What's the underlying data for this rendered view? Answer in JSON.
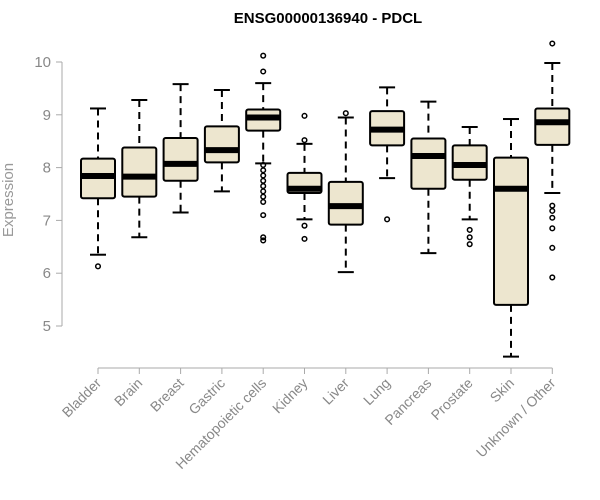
{
  "chart_data": {
    "type": "boxplot",
    "title": "ENSG00000136940 - PDCL",
    "xlabel": "",
    "ylabel": "Expression",
    "ylim": [
      4.3,
      10.5
    ],
    "yticks": [
      5,
      6,
      7,
      8,
      9,
      10
    ],
    "grid": false,
    "legend": "none",
    "box_fill": "#ede6cf",
    "categories": [
      "Bladder",
      "Brain",
      "Breast",
      "Gastric",
      "Hematopoietic cells",
      "Kidney",
      "Liver",
      "Lung",
      "Pancreas",
      "Prostate",
      "Skin",
      "Unknown / Other"
    ],
    "boxes": [
      {
        "category": "Bladder",
        "whisker_low": 6.35,
        "q1": 7.42,
        "median": 7.84,
        "q3": 8.17,
        "whisker_high": 9.12,
        "outliers": [
          6.13
        ]
      },
      {
        "category": "Brain",
        "whisker_low": 6.68,
        "q1": 7.45,
        "median": 7.83,
        "q3": 8.38,
        "whisker_high": 9.28,
        "outliers": []
      },
      {
        "category": "Breast",
        "whisker_low": 7.15,
        "q1": 7.75,
        "median": 8.07,
        "q3": 8.56,
        "whisker_high": 9.58,
        "outliers": []
      },
      {
        "category": "Gastric",
        "whisker_low": 7.55,
        "q1": 8.1,
        "median": 8.33,
        "q3": 8.78,
        "whisker_high": 9.47,
        "outliers": []
      },
      {
        "category": "Hematopoietic cells",
        "whisker_low": 8.08,
        "q1": 8.7,
        "median": 8.95,
        "q3": 9.1,
        "whisker_high": 9.6,
        "outliers": [
          9.82,
          10.12,
          8.05,
          7.95,
          7.85,
          7.75,
          7.65,
          7.55,
          7.45,
          7.35,
          7.1,
          6.68,
          6.62
        ]
      },
      {
        "category": "Kidney",
        "whisker_low": 7.02,
        "q1": 7.52,
        "median": 7.6,
        "q3": 7.9,
        "whisker_high": 8.45,
        "outliers": [
          8.98,
          8.52,
          6.9,
          6.65
        ]
      },
      {
        "category": "Liver",
        "whisker_low": 6.02,
        "q1": 6.92,
        "median": 7.27,
        "q3": 7.73,
        "whisker_high": 8.95,
        "outliers": [
          9.03
        ]
      },
      {
        "category": "Lung",
        "whisker_low": 7.8,
        "q1": 8.42,
        "median": 8.72,
        "q3": 9.07,
        "whisker_high": 9.52,
        "outliers": [
          7.02
        ]
      },
      {
        "category": "Pancreas",
        "whisker_low": 6.38,
        "q1": 7.6,
        "median": 8.22,
        "q3": 8.55,
        "whisker_high": 9.25,
        "outliers": []
      },
      {
        "category": "Prostate",
        "whisker_low": 7.02,
        "q1": 7.77,
        "median": 8.05,
        "q3": 8.42,
        "whisker_high": 8.77,
        "outliers": [
          6.82,
          6.68,
          6.55
        ]
      },
      {
        "category": "Skin",
        "whisker_low": 4.42,
        "q1": 5.4,
        "median": 7.6,
        "q3": 8.19,
        "whisker_high": 8.92,
        "outliers": []
      },
      {
        "category": "Unknown / Other",
        "whisker_low": 7.52,
        "q1": 8.43,
        "median": 8.86,
        "q3": 9.12,
        "whisker_high": 9.98,
        "outliers": [
          10.35,
          7.28,
          7.18,
          7.05,
          6.85,
          6.48,
          5.92
        ]
      }
    ]
  }
}
